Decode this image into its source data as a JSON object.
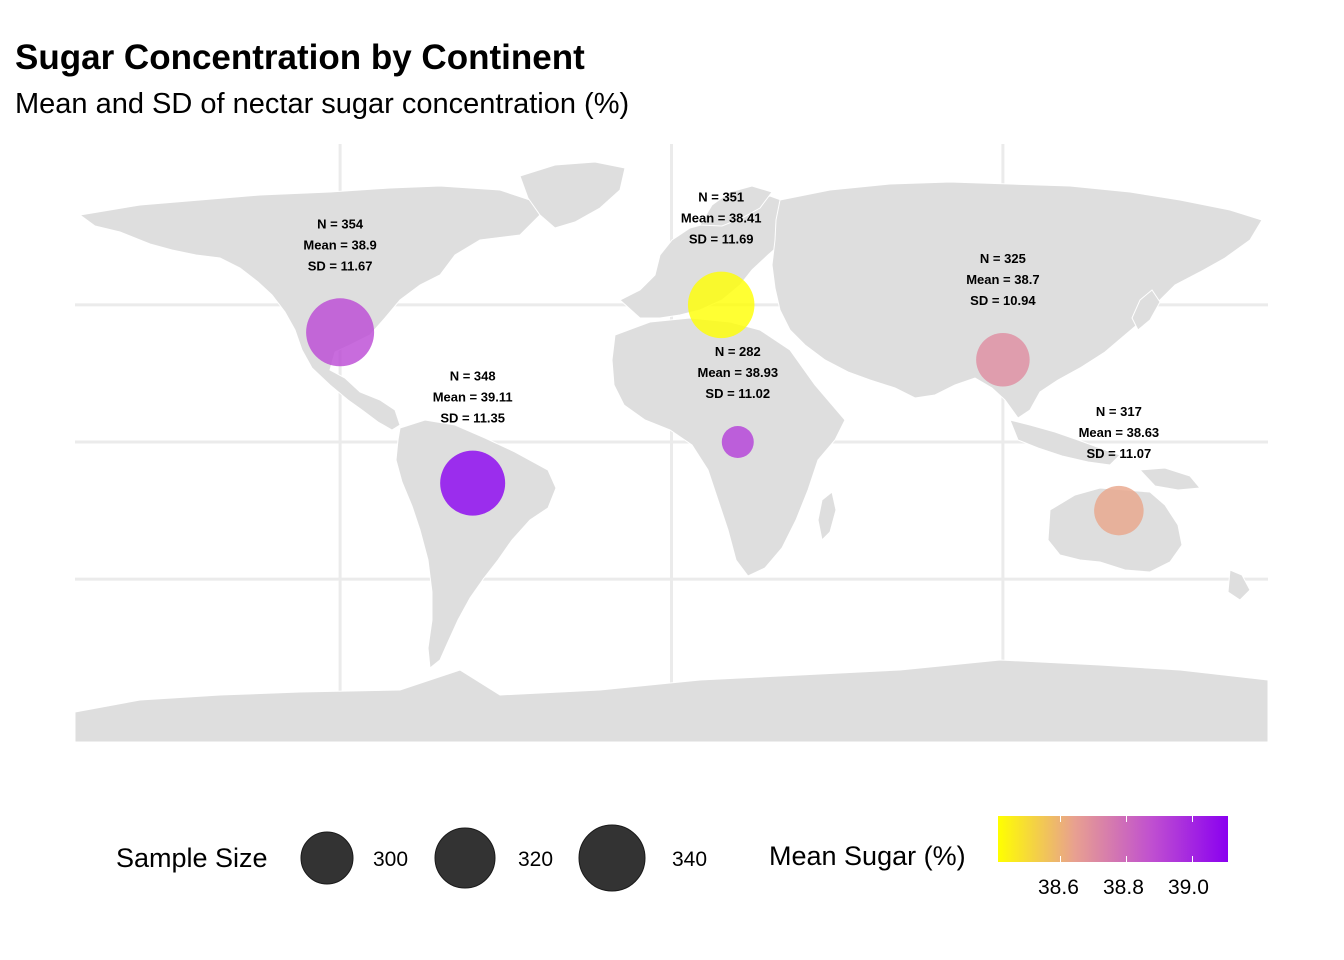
{
  "title": "Sugar Concentration by Continent",
  "subtitle": "Mean and SD of nectar sugar concentration (%)",
  "chart_data": {
    "type": "scatter",
    "map": "world",
    "size_by": "n",
    "color_by": "mean",
    "points": [
      {
        "lon": -100,
        "lat": 40,
        "n": 354,
        "mean": 38.9,
        "sd": 11.67,
        "n_label": "N = 354",
        "mean_label": "Mean = 38.9",
        "sd_label": "SD = 11.67"
      },
      {
        "lon": -60,
        "lat": -15,
        "n": 348,
        "mean": 39.11,
        "sd": 11.35,
        "n_label": "N = 348",
        "mean_label": "Mean = 39.11",
        "sd_label": "SD = 11.35"
      },
      {
        "lon": 15,
        "lat": 50,
        "n": 351,
        "mean": 38.41,
        "sd": 11.69,
        "n_label": "N = 351",
        "mean_label": "Mean = 38.41",
        "sd_label": "SD = 11.69"
      },
      {
        "lon": 20,
        "lat": 0,
        "n": 282,
        "mean": 38.93,
        "sd": 11.02,
        "n_label": "N = 282",
        "mean_label": "Mean = 38.93",
        "sd_label": "SD = 11.02"
      },
      {
        "lon": 100,
        "lat": 30,
        "n": 325,
        "mean": 38.7,
        "sd": 10.94,
        "n_label": "N = 325",
        "mean_label": "Mean = 38.7",
        "sd_label": "SD = 10.94"
      },
      {
        "lon": 135,
        "lat": -25,
        "n": 317,
        "mean": 38.63,
        "sd": 11.07,
        "n_label": "N = 317",
        "mean_label": "Mean = 38.63",
        "sd_label": "SD = 11.07"
      }
    ],
    "legend": {
      "size_title": "Sample Size",
      "size_breaks": [
        300,
        320,
        340
      ],
      "size_labels": [
        "300",
        "320",
        "340"
      ],
      "color_title": "Mean Sugar (%)",
      "color_breaks": [
        38.6,
        38.8,
        39.0
      ],
      "color_labels": [
        "38.6",
        "38.8",
        "39.0"
      ],
      "color_low": "#ffff00",
      "color_high": "#8a00f0",
      "color_range": [
        38.41,
        39.11
      ],
      "legend_position": "bottom"
    },
    "grid": true
  },
  "colors": {
    "land": "#dedede",
    "grid": "#ebebeb",
    "legend_key": "#333333"
  }
}
